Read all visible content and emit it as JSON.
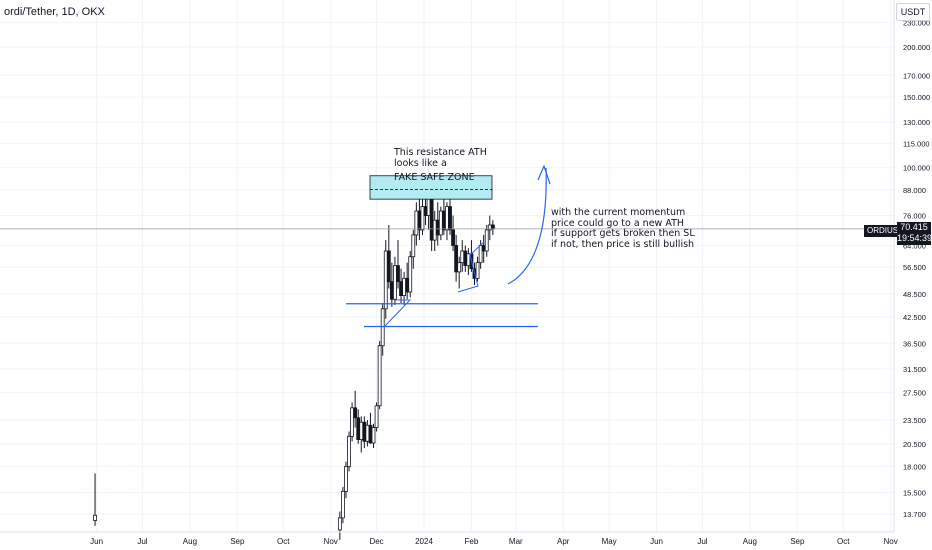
{
  "header": {
    "symbol": "ordi/Tether, 1D, OKX"
  },
  "unit": "USDT",
  "ticker": "ORDIUSDT",
  "last_price": "70.415",
  "countdown": "19:54:39",
  "annotations": {
    "resistance_note": "This resistance ATH\nlooks like a",
    "fake_zone": "FAKE SAFE ZONE",
    "momentum_note": "with the current momentum\nprice could go to a new ATH\nif support gets broken then SL\nif not, then price is still bullish"
  },
  "colors": {
    "grid": "#f0f3fa",
    "candle": "#131722",
    "zone_fill": "#b2ebf2",
    "zone_border": "#131722",
    "support_line": "#2962ff",
    "arrow": "#2962ff",
    "badge_bg": "#131722"
  },
  "chart_data": {
    "type": "candlestick",
    "title": "",
    "y_scale": "log",
    "y_ticks": [
      "13.700",
      "15.500",
      "18.000",
      "20.500",
      "23.500",
      "27.500",
      "31.500",
      "36.500",
      "42.500",
      "48.500",
      "56.500",
      "64.000",
      "76.000",
      "88.000",
      "100.000",
      "115.000",
      "130.000",
      "150.000",
      "170.000",
      "200.000",
      "230.000"
    ],
    "x_ticks": [
      "Jun",
      "Jul",
      "Aug",
      "Sep",
      "Oct",
      "Nov",
      "Dec",
      "2024",
      "Feb",
      "Mar",
      "Apr",
      "May",
      "Jun",
      "Jul",
      "Aug",
      "Sep",
      "Oct",
      "Nov"
    ],
    "support_levels": [
      45.8,
      40.2
    ],
    "resistance_zone": {
      "low": 83.5,
      "high": 95.5,
      "label": "FAKE SAFE ZONE"
    },
    "last_price": 70.415,
    "series": [
      {
        "values": [
          {
            "date": "2023-05-31",
            "o": 13.2,
            "h": 17.3,
            "l": 12.8,
            "c": 13.6
          },
          {
            "date": "2023-11-07",
            "o": 12.5,
            "h": 13.9,
            "l": 11.8,
            "c": 13.4
          },
          {
            "date": "2023-11-09",
            "o": 13.4,
            "h": 16.0,
            "l": 13.0,
            "c": 15.6
          },
          {
            "date": "2023-11-11",
            "o": 15.6,
            "h": 18.5,
            "l": 15.0,
            "c": 18.0
          },
          {
            "date": "2023-11-13",
            "o": 18.0,
            "h": 22.0,
            "l": 17.5,
            "c": 21.4
          },
          {
            "date": "2023-11-15",
            "o": 21.4,
            "h": 26.0,
            "l": 20.8,
            "c": 25.2
          },
          {
            "date": "2023-11-17",
            "o": 25.2,
            "h": 27.8,
            "l": 22.5,
            "c": 23.8
          },
          {
            "date": "2023-11-19",
            "o": 23.8,
            "h": 25.0,
            "l": 20.5,
            "c": 21.0
          },
          {
            "date": "2023-11-21",
            "o": 21.0,
            "h": 24.0,
            "l": 19.5,
            "c": 23.2
          },
          {
            "date": "2023-11-23",
            "o": 23.2,
            "h": 24.0,
            "l": 20.0,
            "c": 20.8
          },
          {
            "date": "2023-11-25",
            "o": 20.8,
            "h": 23.5,
            "l": 20.2,
            "c": 22.8
          },
          {
            "date": "2023-11-27",
            "o": 22.8,
            "h": 24.5,
            "l": 20.5,
            "c": 20.6
          },
          {
            "date": "2023-11-29",
            "o": 20.6,
            "h": 23.0,
            "l": 20.0,
            "c": 22.5
          },
          {
            "date": "2023-12-01",
            "o": 22.5,
            "h": 26.0,
            "l": 22.0,
            "c": 25.5
          },
          {
            "date": "2023-12-03",
            "o": 25.5,
            "h": 37.0,
            "l": 25.0,
            "c": 36.0
          },
          {
            "date": "2023-12-05",
            "o": 36.0,
            "h": 46.0,
            "l": 34.0,
            "c": 44.5
          },
          {
            "date": "2023-12-07",
            "o": 44.5,
            "h": 66.0,
            "l": 42.0,
            "c": 62.0
          },
          {
            "date": "2023-12-09",
            "o": 62.0,
            "h": 72.0,
            "l": 50.0,
            "c": 52.0
          },
          {
            "date": "2023-12-11",
            "o": 52.0,
            "h": 58.0,
            "l": 45.0,
            "c": 47.0
          },
          {
            "date": "2023-12-13",
            "o": 47.0,
            "h": 60.0,
            "l": 45.5,
            "c": 57.0
          },
          {
            "date": "2023-12-15",
            "o": 57.0,
            "h": 66.0,
            "l": 50.0,
            "c": 52.0
          },
          {
            "date": "2023-12-17",
            "o": 52.0,
            "h": 56.0,
            "l": 46.0,
            "c": 48.0
          },
          {
            "date": "2023-12-19",
            "o": 48.0,
            "h": 55.0,
            "l": 45.5,
            "c": 53.0
          },
          {
            "date": "2023-12-21",
            "o": 53.0,
            "h": 58.0,
            "l": 47.0,
            "c": 49.0
          },
          {
            "date": "2023-12-23",
            "o": 49.0,
            "h": 62.0,
            "l": 47.5,
            "c": 60.0
          },
          {
            "date": "2023-12-25",
            "o": 60.0,
            "h": 70.0,
            "l": 56.0,
            "c": 68.0
          },
          {
            "date": "2023-12-27",
            "o": 68.0,
            "h": 82.0,
            "l": 64.0,
            "c": 78.0
          },
          {
            "date": "2023-12-29",
            "o": 78.0,
            "h": 84.0,
            "l": 66.0,
            "c": 70.0
          },
          {
            "date": "2023-12-31",
            "o": 70.0,
            "h": 86.0,
            "l": 68.0,
            "c": 80.0
          },
          {
            "date": "2024-01-02",
            "o": 80.0,
            "h": 96.0,
            "l": 72.0,
            "c": 76.0
          },
          {
            "date": "2024-01-04",
            "o": 76.0,
            "h": 88.0,
            "l": 70.0,
            "c": 84.0
          },
          {
            "date": "2024-01-06",
            "o": 84.0,
            "h": 86.0,
            "l": 62.0,
            "c": 66.0
          },
          {
            "date": "2024-01-08",
            "o": 66.0,
            "h": 78.0,
            "l": 62.0,
            "c": 74.0
          },
          {
            "date": "2024-01-10",
            "o": 74.0,
            "h": 82.0,
            "l": 64.0,
            "c": 68.0
          },
          {
            "date": "2024-01-12",
            "o": 68.0,
            "h": 80.0,
            "l": 66.0,
            "c": 78.0
          },
          {
            "date": "2024-01-14",
            "o": 78.0,
            "h": 84.0,
            "l": 68.0,
            "c": 70.0
          },
          {
            "date": "2024-01-16",
            "o": 70.0,
            "h": 82.0,
            "l": 66.0,
            "c": 80.0
          },
          {
            "date": "2024-01-18",
            "o": 80.0,
            "h": 84.0,
            "l": 68.0,
            "c": 70.0
          },
          {
            "date": "2024-01-20",
            "o": 70.0,
            "h": 76.0,
            "l": 62.0,
            "c": 64.0
          },
          {
            "date": "2024-01-22",
            "o": 64.0,
            "h": 68.0,
            "l": 52.0,
            "c": 55.0
          },
          {
            "date": "2024-01-24",
            "o": 55.0,
            "h": 60.0,
            "l": 50.0,
            "c": 58.0
          },
          {
            "date": "2024-01-26",
            "o": 58.0,
            "h": 66.0,
            "l": 55.0,
            "c": 62.0
          },
          {
            "date": "2024-01-28",
            "o": 62.0,
            "h": 64.0,
            "l": 55.0,
            "c": 57.0
          },
          {
            "date": "2024-01-30",
            "o": 57.0,
            "h": 63.0,
            "l": 54.0,
            "c": 61.0
          },
          {
            "date": "2024-02-01",
            "o": 61.0,
            "h": 66.0,
            "l": 55.0,
            "c": 56.0
          },
          {
            "date": "2024-02-03",
            "o": 56.0,
            "h": 58.0,
            "l": 51.0,
            "c": 53.0
          },
          {
            "date": "2024-02-05",
            "o": 53.0,
            "h": 60.0,
            "l": 52.0,
            "c": 58.0
          },
          {
            "date": "2024-02-07",
            "o": 58.0,
            "h": 66.0,
            "l": 56.0,
            "c": 64.0
          },
          {
            "date": "2024-02-09",
            "o": 64.0,
            "h": 68.0,
            "l": 58.0,
            "c": 62.0
          },
          {
            "date": "2024-02-11",
            "o": 62.0,
            "h": 72.0,
            "l": 60.0,
            "c": 70.0
          },
          {
            "date": "2024-02-13",
            "o": 70.0,
            "h": 76.0,
            "l": 66.0,
            "c": 72.0
          },
          {
            "date": "2024-02-15",
            "o": 72.0,
            "h": 74.0,
            "l": 68.0,
            "c": 70.4
          }
        ]
      }
    ]
  }
}
